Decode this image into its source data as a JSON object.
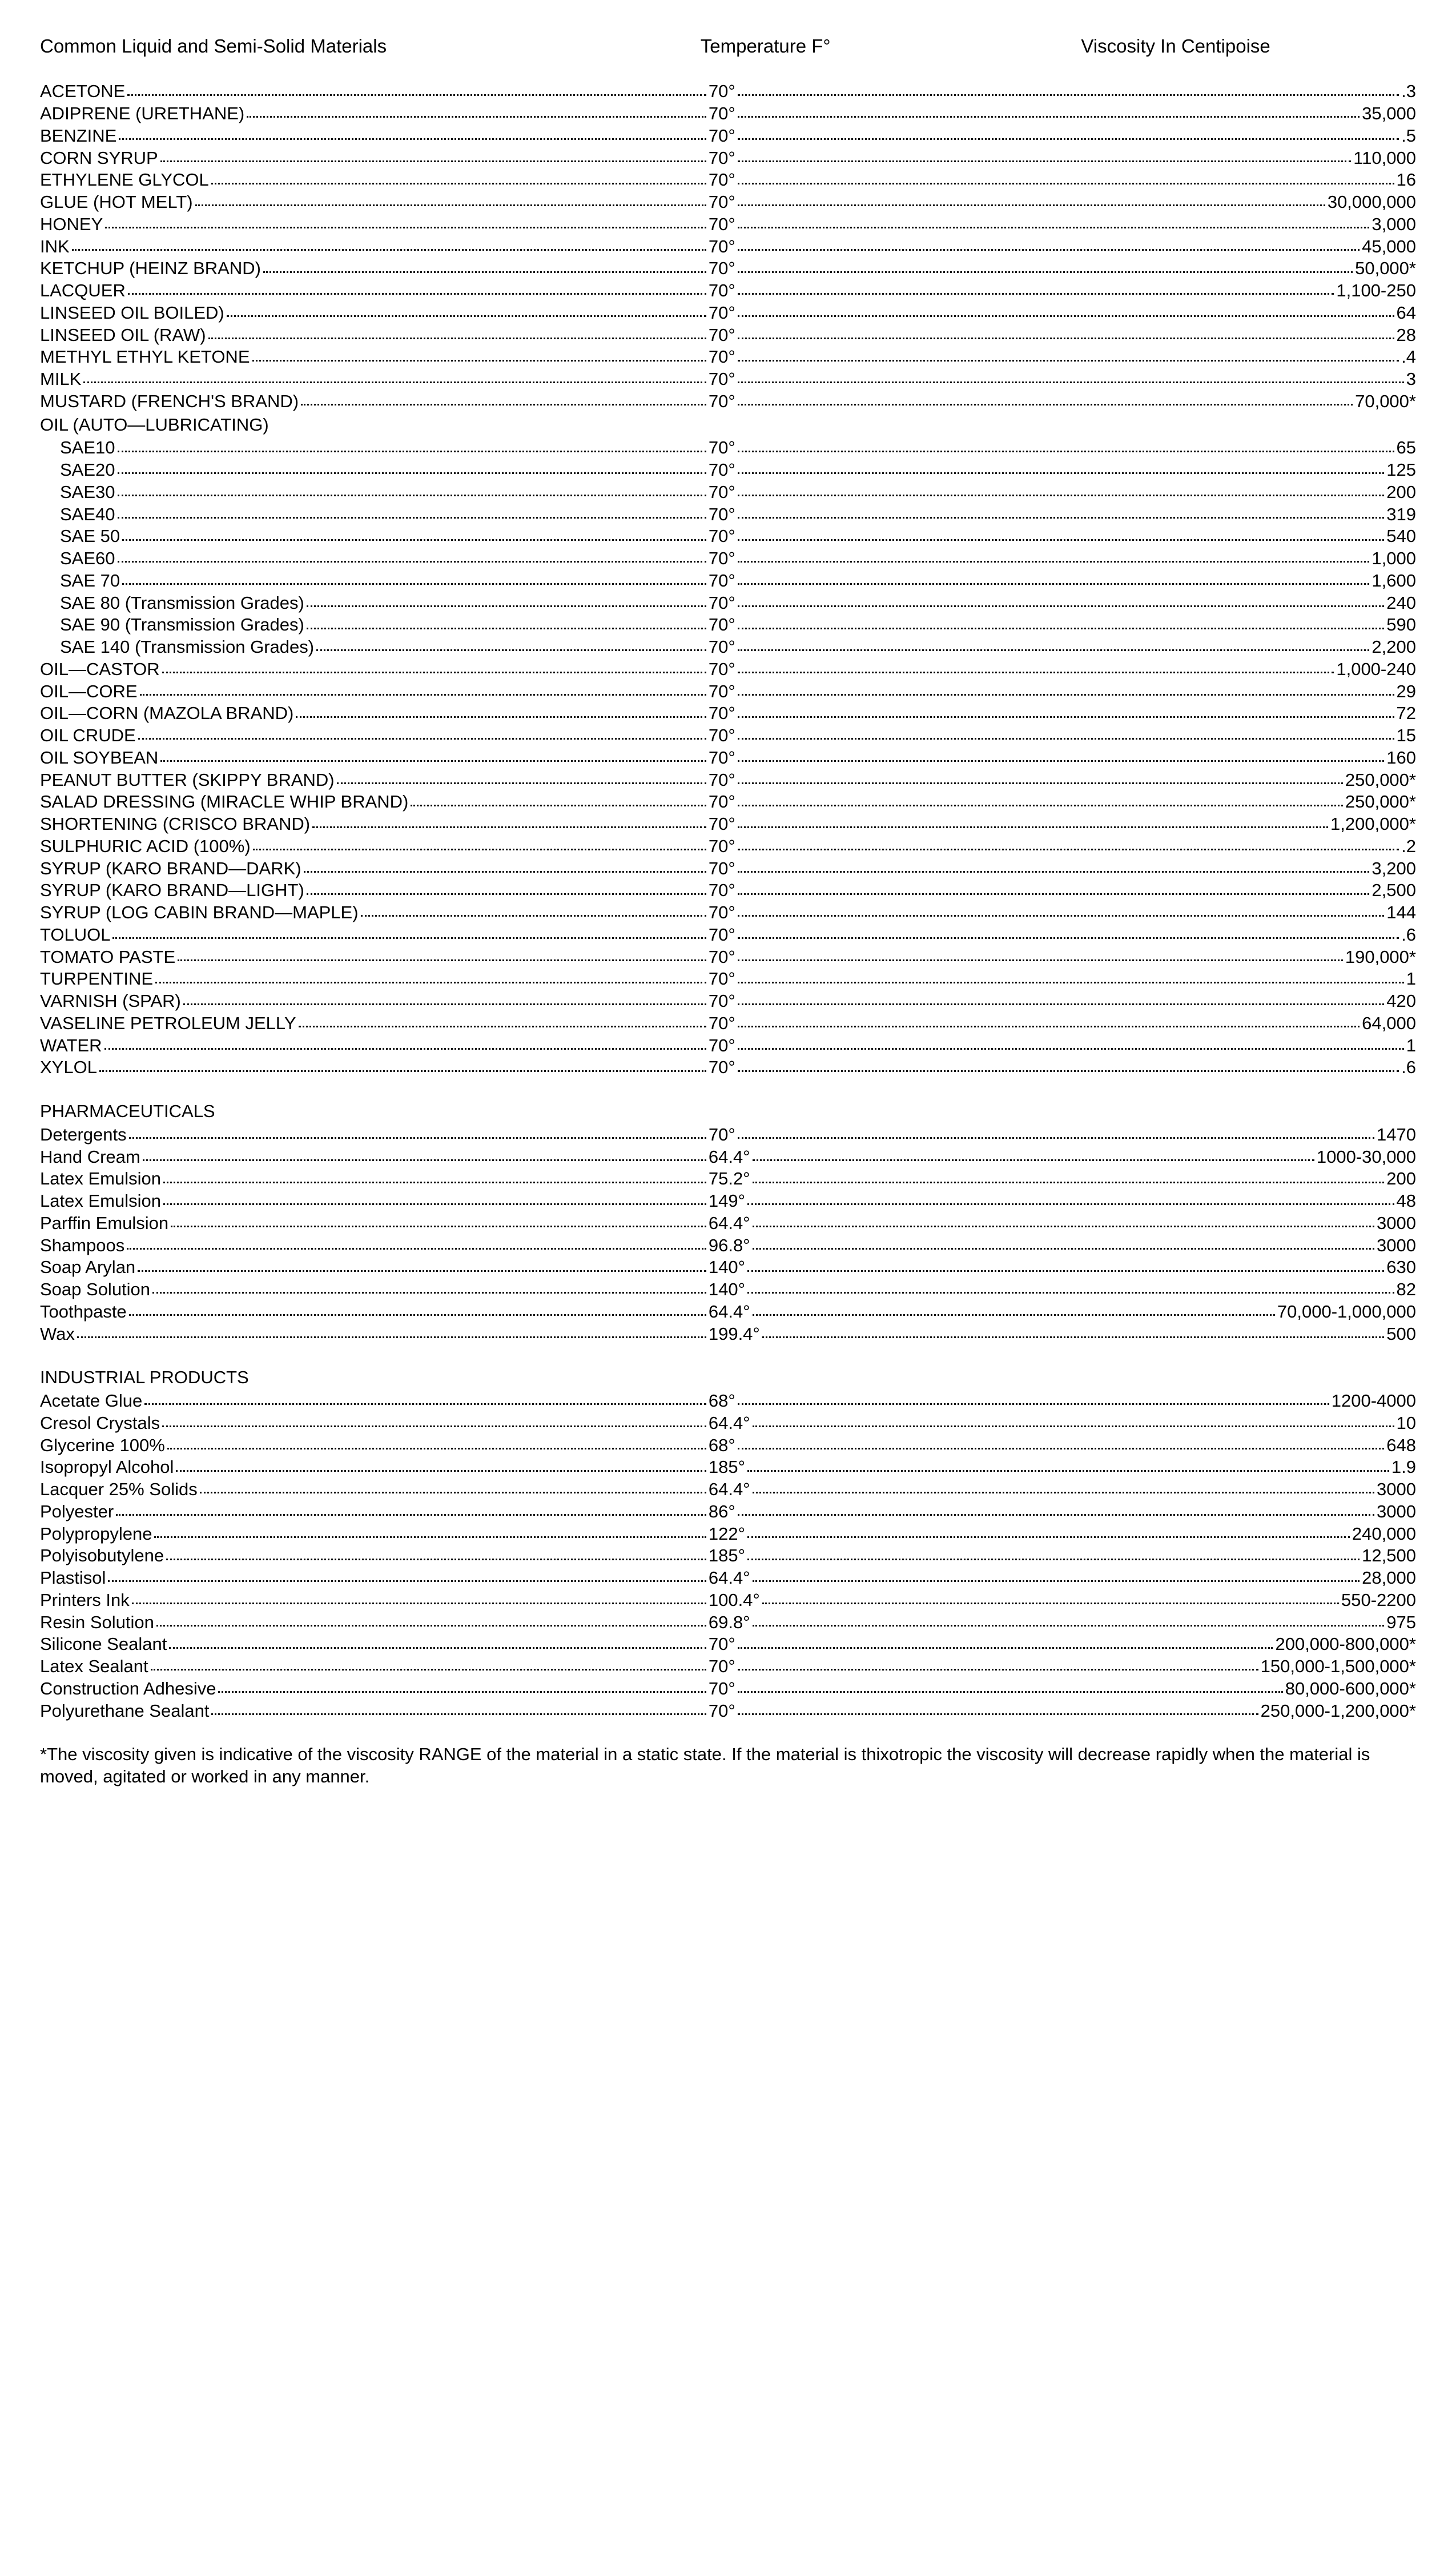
{
  "headers": {
    "material": "Common Liquid and Semi-Solid Materials",
    "temperature": "Temperature F°",
    "viscosity": "Viscosity In Centipoise"
  },
  "sections": [
    {
      "title": null,
      "rows": [
        {
          "m": "ACETONE",
          "t": "70°",
          "v": ".3"
        },
        {
          "m": "ADIPRENE (URETHANE)",
          "t": "70°",
          "v": "35,000"
        },
        {
          "m": "BENZINE",
          "t": "70°",
          "v": ".5"
        },
        {
          "m": "CORN SYRUP",
          "t": "70°",
          "v": "110,000"
        },
        {
          "m": "ETHYLENE GLYCOL",
          "t": "70°",
          "v": "16"
        },
        {
          "m": "GLUE (HOT MELT)",
          "t": "70°",
          "v": "30,000,000"
        },
        {
          "m": "HONEY",
          "t": "70°",
          "v": "3,000"
        },
        {
          "m": "INK",
          "t": "70°",
          "v": "45,000"
        },
        {
          "m": "KETCHUP (HEINZ BRAND)",
          "t": "70°",
          "v": "50,000*"
        },
        {
          "m": "LACQUER",
          "t": "70°",
          "v": "1,100-250"
        },
        {
          "m": "LINSEED OIL BOILED)",
          "t": "70°",
          "v": "64"
        },
        {
          "m": "LINSEED OIL (RAW)",
          "t": "70°",
          "v": "28"
        },
        {
          "m": "METHYL ETHYL KETONE",
          "t": "70°",
          "v": ".4"
        },
        {
          "m": "MILK",
          "t": "70°",
          "v": "3"
        },
        {
          "m": "MUSTARD (FRENCH'S BRAND)",
          "t": "70°",
          "v": "70,000*"
        },
        {
          "m": "OIL (AUTO—LUBRICATING)",
          "plain": true
        },
        {
          "m": "SAE10",
          "t": "70°",
          "v": "65",
          "indent": true
        },
        {
          "m": "SAE20",
          "t": "70°",
          "v": "125",
          "indent": true
        },
        {
          "m": "SAE30",
          "t": "70°",
          "v": "200",
          "indent": true
        },
        {
          "m": "SAE40",
          "t": "70°",
          "v": "319",
          "indent": true
        },
        {
          "m": "SAE 50",
          "t": "70°",
          "v": "540",
          "indent": true
        },
        {
          "m": "SAE60",
          "t": "70°",
          "v": "1,000",
          "indent": true
        },
        {
          "m": "SAE 70",
          "t": "70°",
          "v": "1,600",
          "indent": true
        },
        {
          "m": "SAE 80 (Transmission Grades)",
          "t": "70°",
          "v": "240",
          "indent": true
        },
        {
          "m": "SAE 90 (Transmission Grades)",
          "t": "70°",
          "v": "590",
          "indent": true
        },
        {
          "m": "SAE 140 (Transmission Grades)",
          "t": "70°",
          "v": "2,200",
          "indent": true
        },
        {
          "m": "OIL—CASTOR",
          "t": "70°",
          "v": "1,000-240"
        },
        {
          "m": "OIL—CORE",
          "t": "70°",
          "v": "29"
        },
        {
          "m": "OIL—CORN (MAZOLA BRAND)",
          "t": "70°",
          "v": "72"
        },
        {
          "m": "OIL CRUDE",
          "t": "70°",
          "v": "15"
        },
        {
          "m": "OIL SOYBEAN",
          "t": "70°",
          "v": "160"
        },
        {
          "m": "PEANUT BUTTER (SKIPPY BRAND)",
          "t": "70°",
          "v": "250,000*"
        },
        {
          "m": "SALAD DRESSING (MIRACLE WHIP BRAND)",
          "t": "70°",
          "v": "250,000*"
        },
        {
          "m": "SHORTENING (CRISCO BRAND)",
          "t": "70°",
          "v": "1,200,000*"
        },
        {
          "m": "SULPHURIC ACID (100%)",
          "t": "70°",
          "v": ".2"
        },
        {
          "m": "SYRUP (KARO BRAND—DARK)",
          "t": "70°",
          "v": "3,200"
        },
        {
          "m": "SYRUP (KARO BRAND—LIGHT)",
          "t": "70°",
          "v": "2,500"
        },
        {
          "m": "SYRUP (LOG CABIN BRAND—MAPLE)",
          "t": "70°",
          "v": "144"
        },
        {
          "m": "TOLUOL",
          "t": "70°",
          "v": ".6"
        },
        {
          "m": "TOMATO PASTE",
          "t": "70°",
          "v": "190,000*"
        },
        {
          "m": "TURPENTINE",
          "t": "70°",
          "v": "1"
        },
        {
          "m": "VARNISH (SPAR)",
          "t": "70°",
          "v": "420"
        },
        {
          "m": "VASELINE PETROLEUM JELLY",
          "t": "70°",
          "v": "64,000"
        },
        {
          "m": "WATER",
          "t": "70°",
          "v": "1"
        },
        {
          "m": "XYLOL",
          "t": "70°",
          "v": ".6"
        }
      ]
    },
    {
      "title": "PHARMACEUTICALS",
      "rows": [
        {
          "m": "Detergents",
          "t": "70°",
          "v": "1470"
        },
        {
          "m": "Hand Cream",
          "t": "64.4°",
          "v": "1000-30,000"
        },
        {
          "m": "Latex Emulsion",
          "t": "75.2°",
          "v": "200"
        },
        {
          "m": "Latex Emulsion",
          "t": "149°",
          "v": "48"
        },
        {
          "m": "Parffin Emulsion",
          "t": "64.4°",
          "v": "3000"
        },
        {
          "m": "Shampoos",
          "t": "96.8°",
          "v": "3000"
        },
        {
          "m": "Soap Arylan",
          "t": "140°",
          "v": "630"
        },
        {
          "m": "Soap Solution",
          "t": "140°",
          "v": "82"
        },
        {
          "m": "Toothpaste",
          "t": "64.4°",
          "v": "70,000-1,000,000"
        },
        {
          "m": "Wax",
          "t": "199.4°",
          "v": "500"
        }
      ]
    },
    {
      "title": "INDUSTRIAL PRODUCTS",
      "rows": [
        {
          "m": "Acetate Glue",
          "t": "68°",
          "v": "1200-4000"
        },
        {
          "m": "Cresol Crystals",
          "t": "64.4°",
          "v": "10"
        },
        {
          "m": "Glycerine 100%",
          "t": "68°",
          "v": "648"
        },
        {
          "m": "Isopropyl Alcohol",
          "t": "185°",
          "v": "1.9"
        },
        {
          "m": "Lacquer 25% Solids",
          "t": "64.4°",
          "v": "3000"
        },
        {
          "m": "Polyester",
          "t": "86°",
          "v": "3000"
        },
        {
          "m": "Polypropylene",
          "t": "122°",
          "v": "240,000"
        },
        {
          "m": "Polyisobutylene",
          "t": "185°",
          "v": "12,500"
        },
        {
          "m": "Plastisol",
          "t": "64.4°",
          "v": "28,000"
        },
        {
          "m": "Printers Ink",
          "t": "100.4°",
          "v": "550-2200"
        },
        {
          "m": "Resin Solution",
          "t": "69.8°",
          "v": "975"
        },
        {
          "m": "Silicone Sealant",
          "t": "70°",
          "v": "200,000-800,000*"
        },
        {
          "m": "Latex Sealant",
          "t": "70°",
          "v": "150,000-1,500,000*"
        },
        {
          "m": "Construction Adhesive",
          "t": "70°",
          "v": "80,000-600,000*"
        },
        {
          "m": "Polyurethane Sealant",
          "t": "70°",
          "v": "250,000-1,200,000*"
        }
      ]
    }
  ],
  "footnote": "*The viscosity given is indicative of the viscosity RANGE of the material in a static state. If the material is thixotropic the viscosity will decrease rapidly when the material is moved, agitated or worked in any manner."
}
